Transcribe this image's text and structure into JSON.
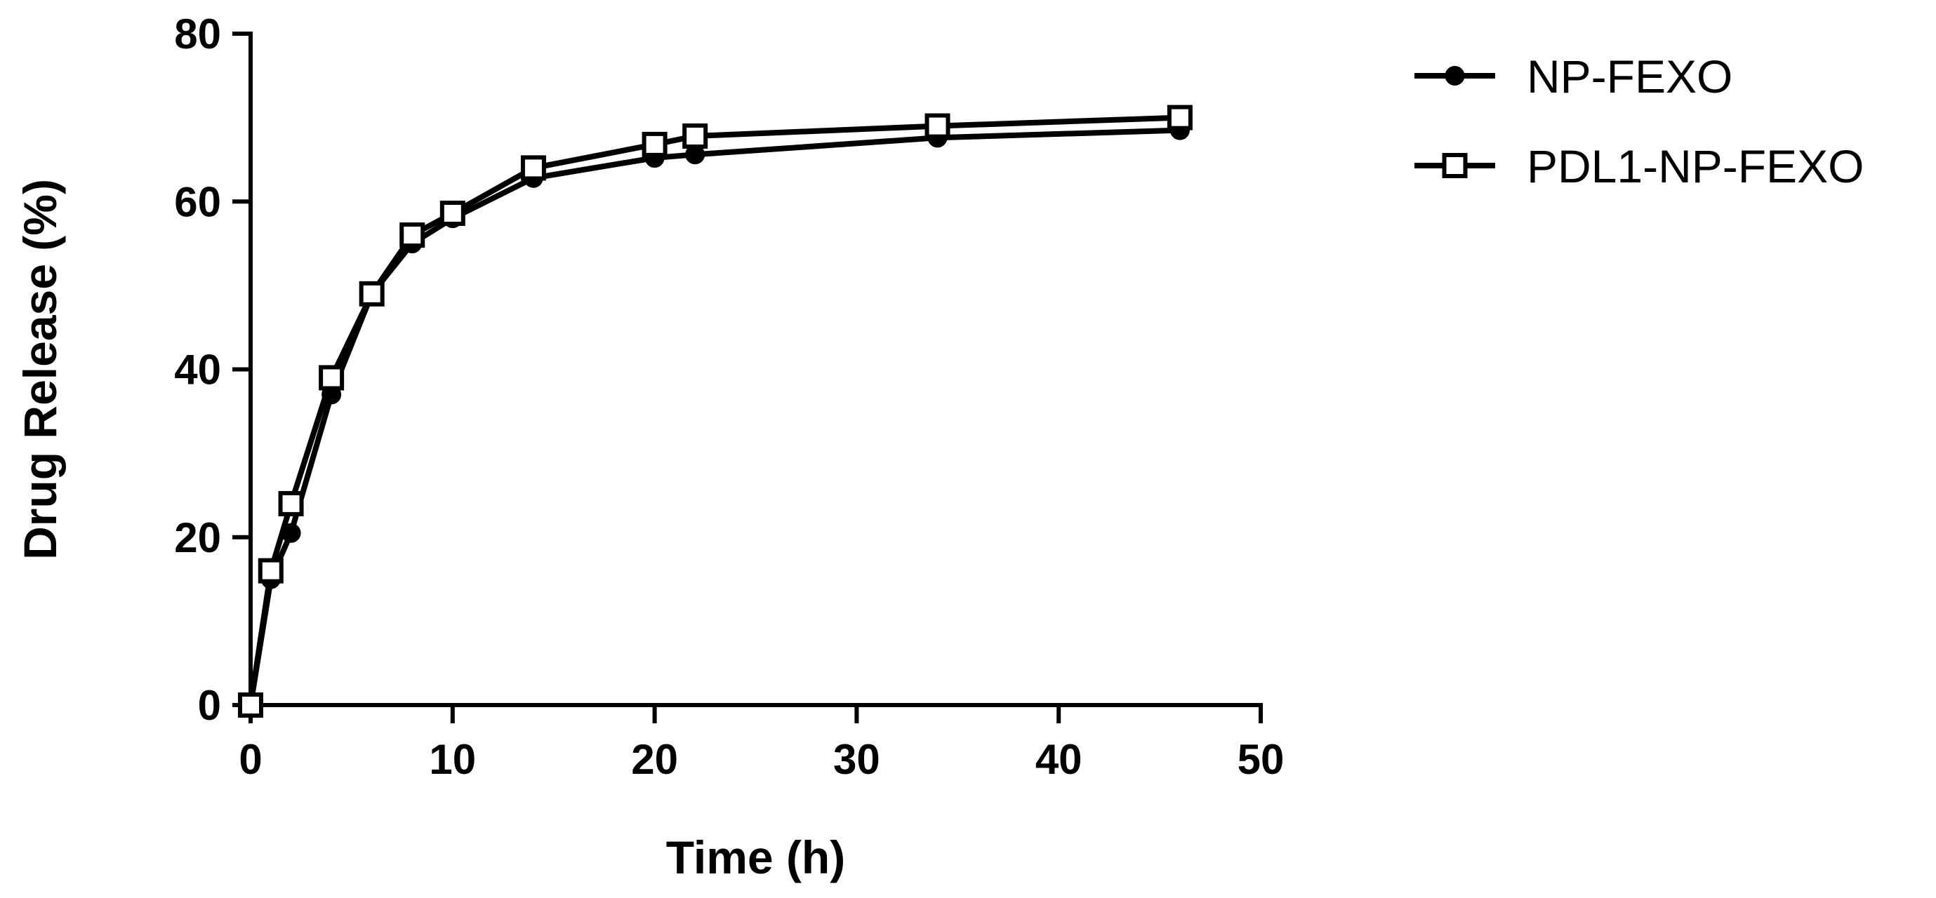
{
  "chart_data": {
    "type": "line",
    "title": "",
    "xlabel": "Time (h)",
    "ylabel": "Drug Release (%)",
    "xlim": [
      0,
      50
    ],
    "ylim": [
      0,
      80
    ],
    "xticks": [
      0,
      10,
      20,
      30,
      40,
      50
    ],
    "yticks": [
      0,
      20,
      40,
      60,
      80
    ],
    "grid": false,
    "legend_position": "top-right",
    "series": [
      {
        "name": "NP-FEXO",
        "marker": "filled-circle",
        "x": [
          0,
          1,
          2,
          4,
          6,
          8,
          10,
          14,
          20,
          22,
          34,
          46
        ],
        "y": [
          0,
          15,
          20.5,
          37,
          49,
          55,
          58,
          62.8,
          65.2,
          65.6,
          67.6,
          68.5
        ]
      },
      {
        "name": "PDL1-NP-FEXO",
        "marker": "open-square",
        "x": [
          0,
          1,
          2,
          4,
          6,
          8,
          10,
          14,
          20,
          22,
          34,
          46
        ],
        "y": [
          0,
          16,
          24,
          39,
          49,
          56,
          58.6,
          64,
          66.8,
          67.8,
          69,
          70
        ]
      }
    ]
  }
}
